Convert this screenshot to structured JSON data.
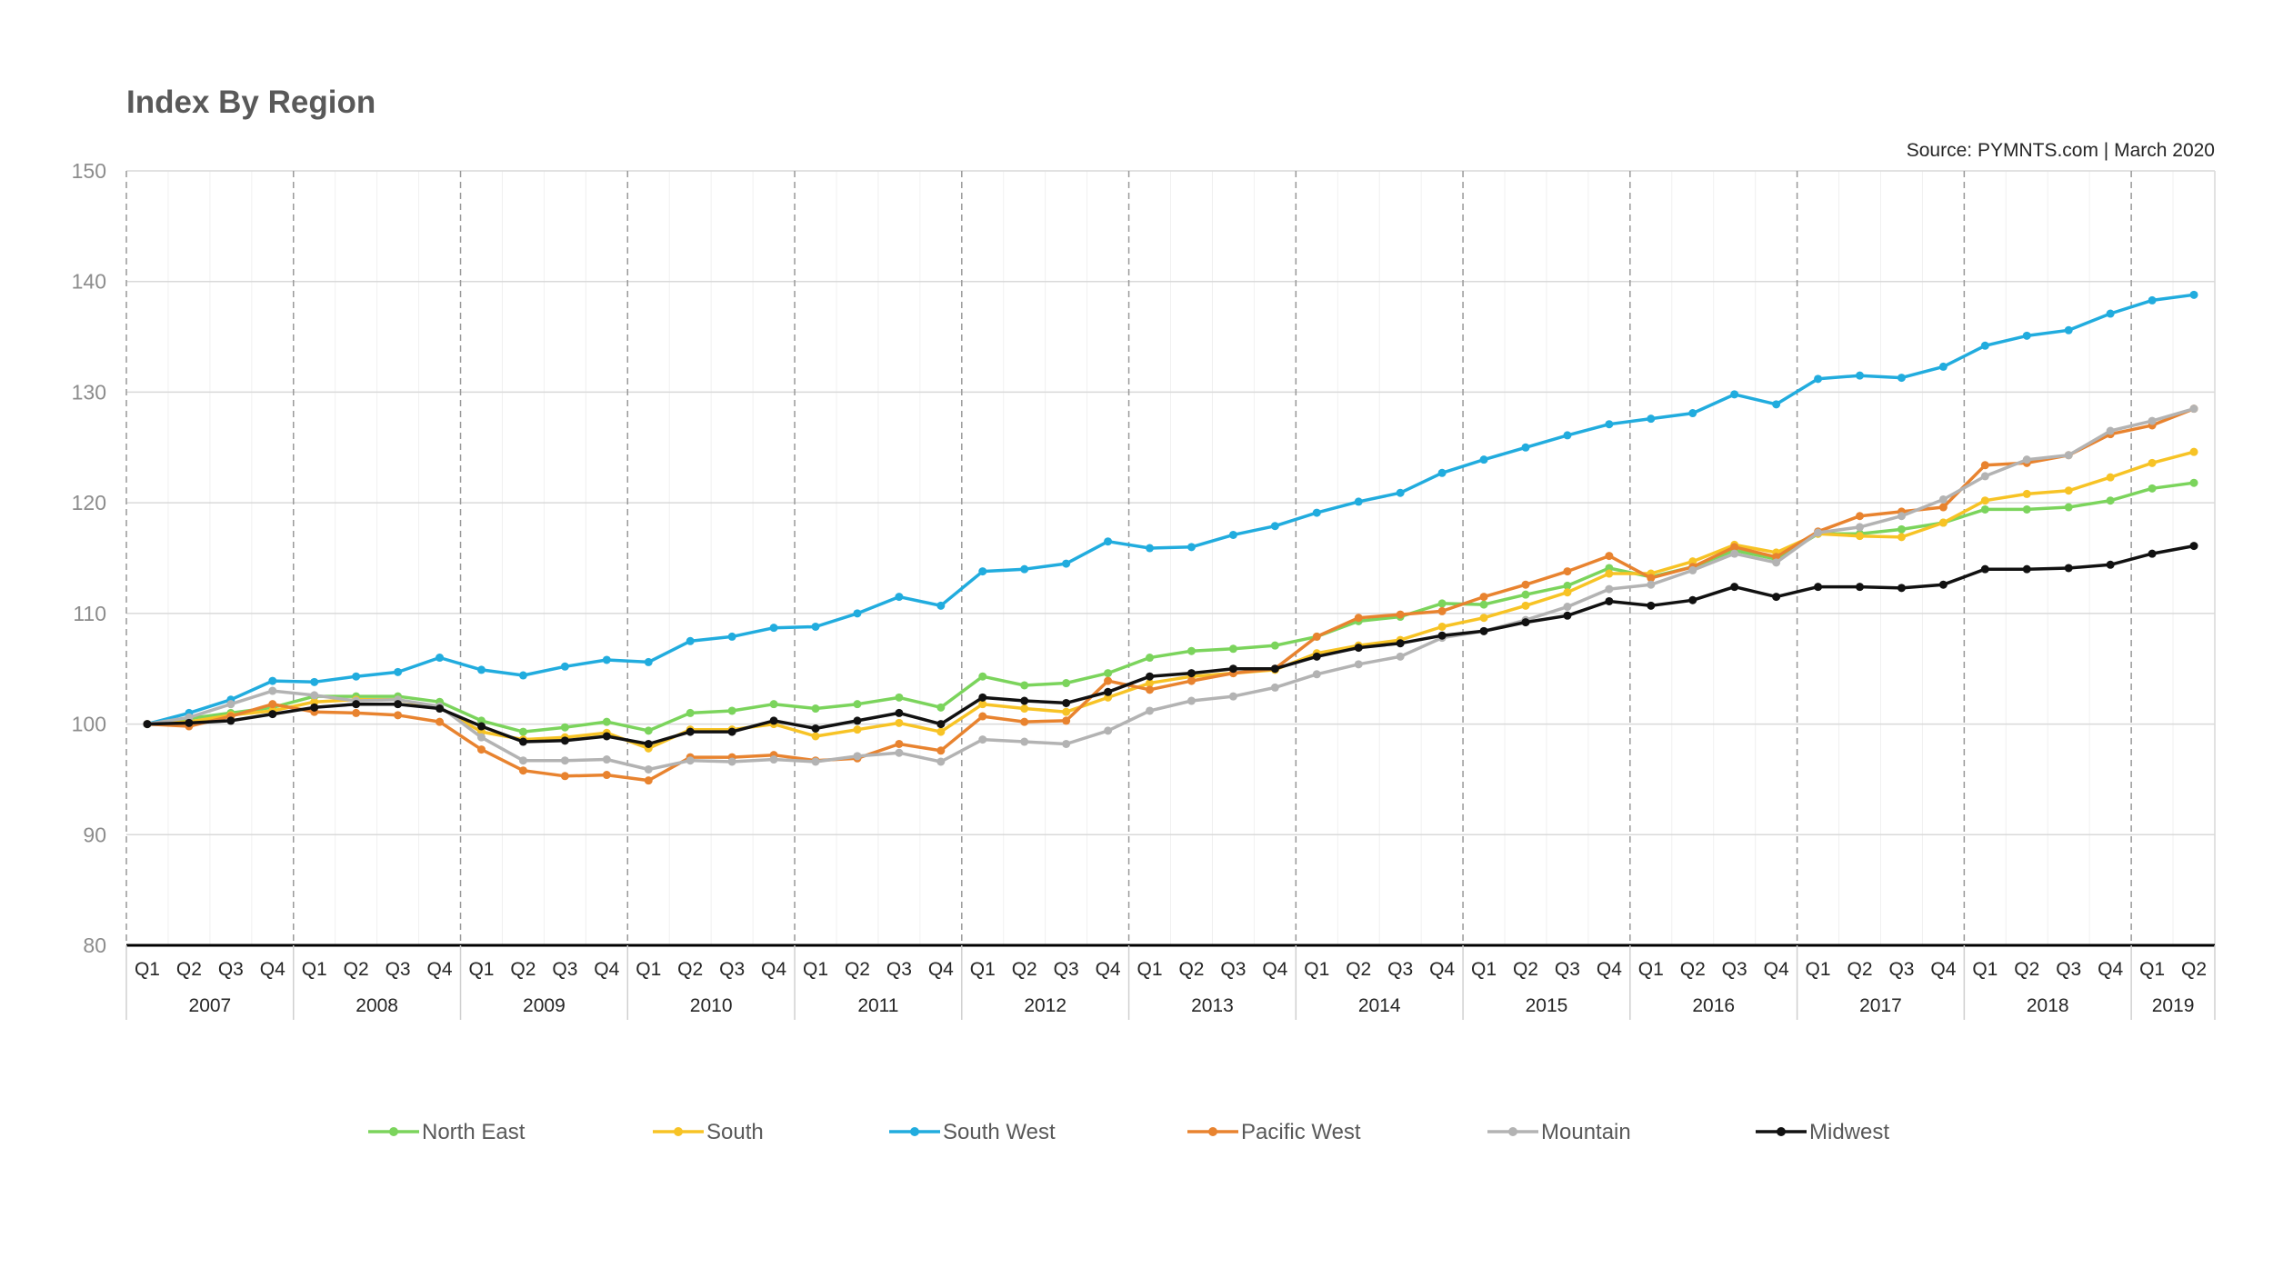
{
  "colors": {
    "north_east": "#7bd45c",
    "south": "#f7c325",
    "south_west": "#21acde",
    "pacific_west": "#e8832f",
    "mountain": "#b3b3b3",
    "midwest": "#111111"
  },
  "chart_data": {
    "type": "line",
    "title": "Index By Region",
    "source": "Source: PYMNTS.com  |  March 2020",
    "xlabel": "",
    "ylabel": "",
    "ylim": [
      80,
      150
    ],
    "yticks": [
      "80",
      "90",
      "100",
      "110",
      "120",
      "130",
      "140",
      "150"
    ],
    "years": [
      "2007",
      "2008",
      "2009",
      "2010",
      "2011",
      "2012",
      "2013",
      "2014",
      "2015",
      "2016",
      "2017",
      "2018",
      "2019"
    ],
    "quarters": [
      "Q1",
      "Q2",
      "Q3",
      "Q4"
    ],
    "categories": [
      "2007 Q1",
      "2007 Q2",
      "2007 Q3",
      "2007 Q4",
      "2008 Q1",
      "2008 Q2",
      "2008 Q3",
      "2008 Q4",
      "2009 Q1",
      "2009 Q2",
      "2009 Q3",
      "2009 Q4",
      "2010 Q1",
      "2010 Q2",
      "2010 Q3",
      "2010 Q4",
      "2011 Q1",
      "2011 Q2",
      "2011 Q3",
      "2011 Q4",
      "2012 Q1",
      "2012 Q2",
      "2012 Q3",
      "2012 Q4",
      "2013 Q1",
      "2013 Q2",
      "2013 Q3",
      "2013 Q4",
      "2014 Q1",
      "2014 Q2",
      "2014 Q3",
      "2014 Q4",
      "2015 Q1",
      "2015 Q2",
      "2015 Q3",
      "2015 Q4",
      "2016 Q1",
      "2016 Q2",
      "2016 Q3",
      "2016 Q4",
      "2017 Q1",
      "2017 Q2",
      "2017 Q3",
      "2017 Q4",
      "2018 Q1",
      "2018 Q2",
      "2018 Q3",
      "2018 Q4",
      "2019 Q1",
      "2019 Q2"
    ],
    "grid": true,
    "legend_position": "bottom",
    "series": [
      {
        "name": "North East",
        "key": "north_east",
        "values": [
          100,
          100.5,
          101,
          101.5,
          102.5,
          102.5,
          102.5,
          102,
          100.3,
          99.3,
          99.7,
          100.2,
          99.4,
          101,
          101.2,
          101.8,
          101.4,
          101.8,
          102.4,
          101.5,
          104.3,
          103.5,
          103.7,
          104.6,
          106,
          106.6,
          106.8,
          107.1,
          107.9,
          109.3,
          109.7,
          110.9,
          110.8,
          111.7,
          112.5,
          114.1,
          113.3,
          114.2,
          115.7,
          114.9,
          117.2,
          117.2,
          117.6,
          118.2,
          119.4,
          119.4,
          119.6,
          120.2,
          121.3,
          121.8
        ]
      },
      {
        "name": "South",
        "key": "south",
        "values": [
          100,
          100.2,
          100.8,
          101.2,
          102,
          102.2,
          102.2,
          101.5,
          99.3,
          98.6,
          98.8,
          99.2,
          97.8,
          99.5,
          99.5,
          100,
          98.9,
          99.5,
          100.1,
          99.3,
          101.8,
          101.4,
          101.1,
          102.4,
          103.7,
          104.3,
          104.6,
          104.9,
          106.4,
          107.1,
          107.6,
          108.8,
          109.6,
          110.7,
          111.9,
          113.6,
          113.6,
          114.7,
          116.2,
          115.5,
          117.2,
          117,
          116.9,
          118.2,
          120.2,
          120.8,
          121.1,
          122.3,
          123.6,
          124.6
        ]
      },
      {
        "name": "South West",
        "key": "south_west",
        "values": [
          100,
          101,
          102.2,
          103.9,
          103.8,
          104.3,
          104.7,
          106,
          104.9,
          104.4,
          105.2,
          105.8,
          105.6,
          107.5,
          107.9,
          108.7,
          108.8,
          110,
          111.5,
          110.7,
          113.8,
          114,
          114.5,
          116.5,
          115.9,
          116,
          117.1,
          117.9,
          119.1,
          120.1,
          120.9,
          122.7,
          123.9,
          125,
          126.1,
          127.1,
          127.6,
          128.1,
          129.8,
          128.9,
          131.2,
          131.5,
          131.3,
          132.3,
          134.2,
          135.1,
          135.6,
          137.1,
          138.3,
          138.8
        ]
      },
      {
        "name": "Pacific West",
        "key": "pacific_west",
        "values": [
          100,
          99.8,
          100.7,
          101.8,
          101.1,
          101,
          100.8,
          100.2,
          97.7,
          95.8,
          95.3,
          95.4,
          94.9,
          97,
          97,
          97.2,
          96.7,
          96.9,
          98.2,
          97.6,
          100.7,
          100.2,
          100.3,
          103.9,
          103.1,
          103.9,
          104.6,
          105,
          107.9,
          109.6,
          109.9,
          110.2,
          111.5,
          112.6,
          113.8,
          115.2,
          113.2,
          114.2,
          116,
          115.1,
          117.4,
          118.8,
          119.2,
          119.6,
          123.4,
          123.6,
          124.3,
          126.2,
          127,
          128.5
        ]
      },
      {
        "name": "Mountain",
        "key": "mountain",
        "values": [
          100,
          100.6,
          101.8,
          103,
          102.6,
          102.1,
          102.2,
          101.6,
          98.8,
          96.7,
          96.7,
          96.8,
          95.9,
          96.7,
          96.6,
          96.8,
          96.6,
          97.1,
          97.4,
          96.6,
          98.6,
          98.4,
          98.2,
          99.4,
          101.2,
          102.1,
          102.5,
          103.3,
          104.5,
          105.4,
          106.1,
          107.8,
          108.4,
          109.4,
          110.6,
          112.2,
          112.6,
          113.9,
          115.4,
          114.6,
          117.3,
          117.8,
          118.8,
          120.3,
          122.4,
          123.9,
          124.3,
          126.5,
          127.4,
          128.5
        ]
      },
      {
        "name": "Midwest",
        "key": "midwest",
        "values": [
          100,
          100.1,
          100.3,
          100.9,
          101.5,
          101.8,
          101.8,
          101.4,
          99.8,
          98.4,
          98.5,
          98.9,
          98.2,
          99.3,
          99.3,
          100.3,
          99.6,
          100.3,
          101,
          100,
          102.4,
          102.1,
          101.9,
          102.9,
          104.3,
          104.6,
          105,
          105,
          106.1,
          106.9,
          107.3,
          108,
          108.4,
          109.2,
          109.8,
          111.1,
          110.7,
          111.2,
          112.4,
          111.5,
          112.4,
          112.4,
          112.3,
          112.6,
          114,
          114,
          114.1,
          114.4,
          115.4,
          116.1
        ]
      }
    ]
  }
}
